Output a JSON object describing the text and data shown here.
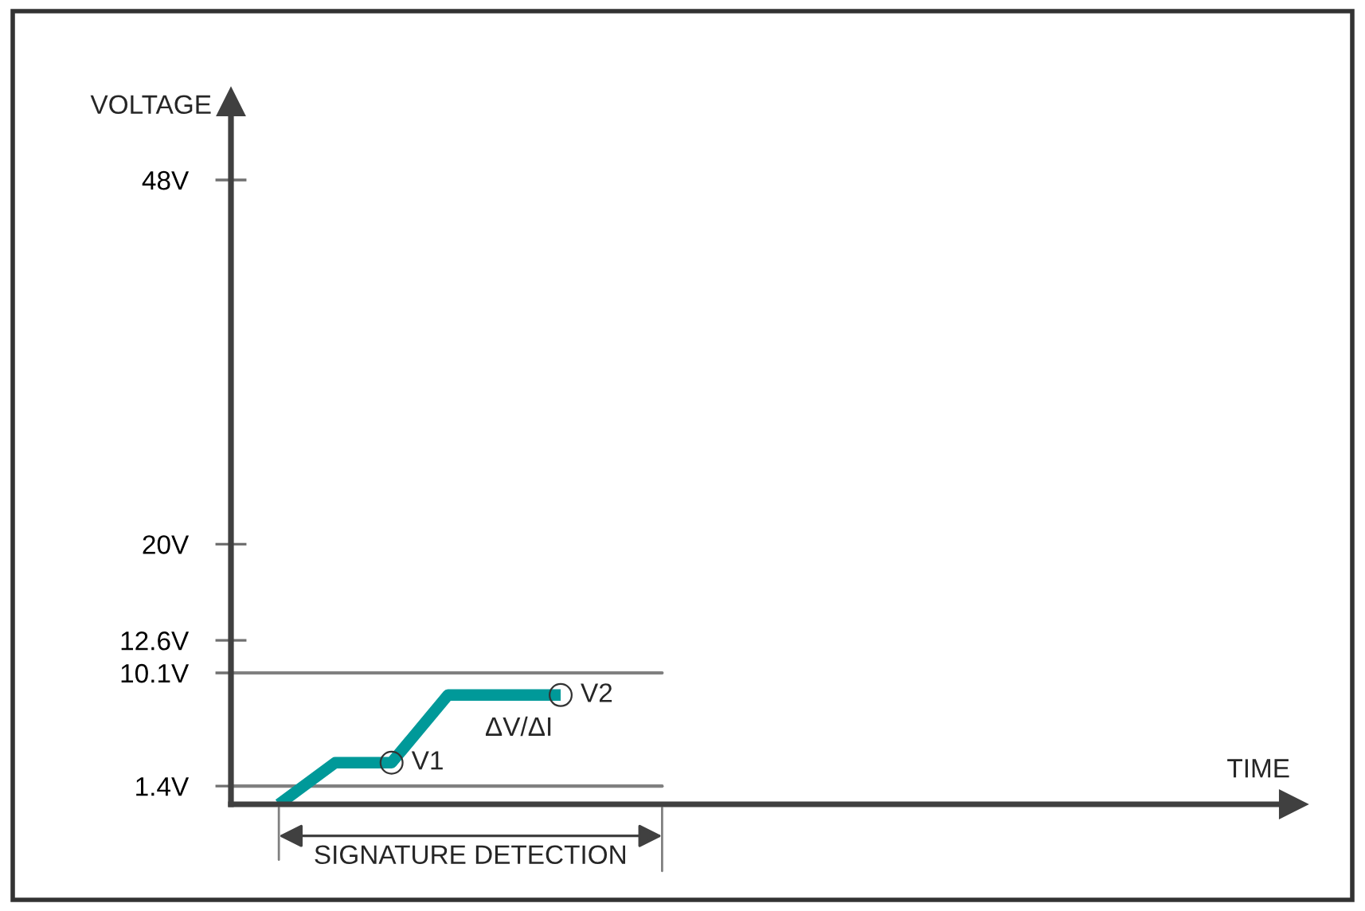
{
  "chart_data": {
    "type": "line",
    "ylabel": "VOLTAGE",
    "categories": [
      null,
      null,
      null,
      null,
      null,
      null
    ],
    "series": [
      {
        "color": "#009999",
        "values": [
          0,
          3.2,
          3.2,
          8.4,
          8.4,
          8.4
        ]
      }
    ],
    "ylim": [
      0,
      54
    ],
    "yticks": [
      {
        "value": 1.4,
        "label": "1.4V"
      },
      {
        "value": 10.1,
        "label": "10.1V"
      },
      {
        "value": 12.6,
        "label": "12.6V"
      },
      {
        "value": 20,
        "label": "20V"
      },
      {
        "value": 48,
        "label": "48V"
      }
    ],
    "ref_lines": [
      {
        "axis": "y",
        "value": 1.4,
        "color": "#808080"
      },
      {
        "axis": "y",
        "value": 10.1,
        "color": "#808080"
      }
    ],
    "annotations": [
      "V1",
      "V2",
      "ΔV/ΔI",
      "SIGNATURE DETECTION",
      "TIME"
    ],
    "tick_labels": "y"
  }
}
